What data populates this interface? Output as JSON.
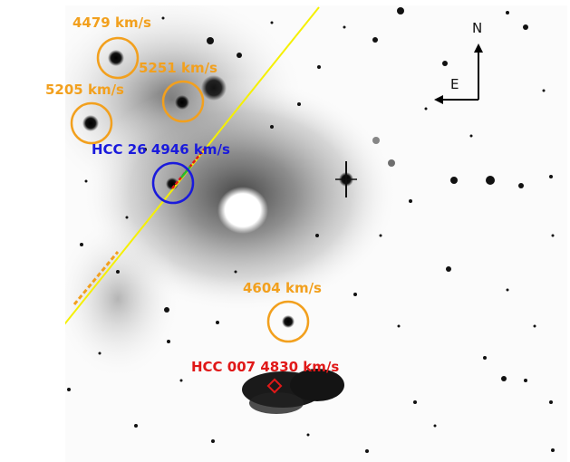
{
  "labels": {
    "g1": "4479 km/s",
    "g2": "5251 km/s",
    "g3": "5205 km/s",
    "hcc26": "HCC 26 4946 km/s",
    "g4": "4604 km/s",
    "hcc007": "HCC 007 4830 km/s"
  },
  "compass": {
    "north": "N",
    "east": "E"
  },
  "colors": {
    "orange": "#f2a01e",
    "blue": "#1a1adc",
    "red": "#e01818",
    "slit": "#f5f000"
  }
}
